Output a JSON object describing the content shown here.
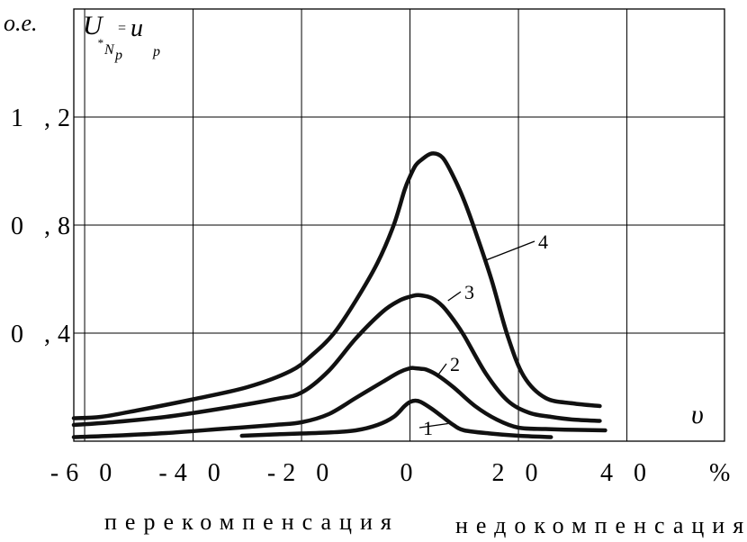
{
  "chart_data": {
    "type": "line",
    "ylabel": "о.е.",
    "formula": {
      "main": "U",
      "sub1": "*",
      "sub2": "N",
      "sub3": "p",
      "eq": "=",
      "rhs": "u",
      "rhs_sub": "p"
    },
    "xlabel_symbol": "υ",
    "x_unit": "%",
    "x_ticks": [
      "-6 0",
      "-4 0",
      "-2 0",
      "0",
      "2 0",
      "4 0"
    ],
    "x_tick_values": [
      -60,
      -40,
      -20,
      0,
      20,
      40
    ],
    "y_ticks": [
      "0 ,4",
      "0 ,8",
      "1 ,2"
    ],
    "y_tick_values": [
      0.4,
      0.8,
      1.2
    ],
    "xlim": [
      -62,
      58
    ],
    "ylim": [
      0,
      1.6
    ],
    "grid": true,
    "region_labels": {
      "left": "перекомпенсация",
      "right": "недокомпенсация"
    },
    "series": [
      {
        "label": "1",
        "x": [
          -31,
          -25,
          -15,
          -10,
          -6,
          -3,
          -1,
          0,
          1,
          2,
          4,
          6,
          8,
          10,
          15,
          20,
          26
        ],
        "y": [
          0.02,
          0.025,
          0.032,
          0.04,
          0.06,
          0.09,
          0.13,
          0.145,
          0.15,
          0.145,
          0.12,
          0.09,
          0.06,
          0.04,
          0.028,
          0.02,
          0.015
        ]
      },
      {
        "label": "2",
        "x": [
          -62,
          -55,
          -45,
          -35,
          -25,
          -20,
          -15,
          -10,
          -5,
          -2,
          0,
          1,
          2,
          3,
          5,
          8,
          12,
          16,
          20,
          25,
          30,
          36
        ],
        "y": [
          0.015,
          0.02,
          0.03,
          0.045,
          0.06,
          0.07,
          0.1,
          0.16,
          0.22,
          0.255,
          0.27,
          0.27,
          0.268,
          0.265,
          0.245,
          0.2,
          0.13,
          0.08,
          0.05,
          0.045,
          0.042,
          0.04
        ]
      },
      {
        "label": "3",
        "x": [
          -62,
          -55,
          -45,
          -35,
          -25,
          -20,
          -15,
          -10,
          -5,
          -2,
          0,
          1,
          2,
          4,
          6,
          8,
          10,
          14,
          18,
          22,
          26,
          30,
          35
        ],
        "y": [
          0.06,
          0.07,
          0.09,
          0.12,
          0.155,
          0.18,
          0.26,
          0.38,
          0.48,
          0.52,
          0.535,
          0.54,
          0.54,
          0.53,
          0.5,
          0.45,
          0.39,
          0.25,
          0.15,
          0.105,
          0.09,
          0.08,
          0.075
        ]
      },
      {
        "label": "4",
        "x": [
          -62,
          -57,
          -50,
          -40,
          -30,
          -22,
          -18,
          -14,
          -10,
          -6,
          -3,
          -1,
          0,
          1,
          2,
          4,
          6,
          8,
          10,
          12,
          15,
          18,
          21,
          25,
          30,
          35
        ],
        "y": [
          0.085,
          0.09,
          0.115,
          0.155,
          0.2,
          0.26,
          0.32,
          0.4,
          0.52,
          0.66,
          0.8,
          0.93,
          0.98,
          1.02,
          1.04,
          1.065,
          1.05,
          0.98,
          0.89,
          0.78,
          0.6,
          0.39,
          0.24,
          0.16,
          0.14,
          0.13
        ]
      }
    ]
  }
}
